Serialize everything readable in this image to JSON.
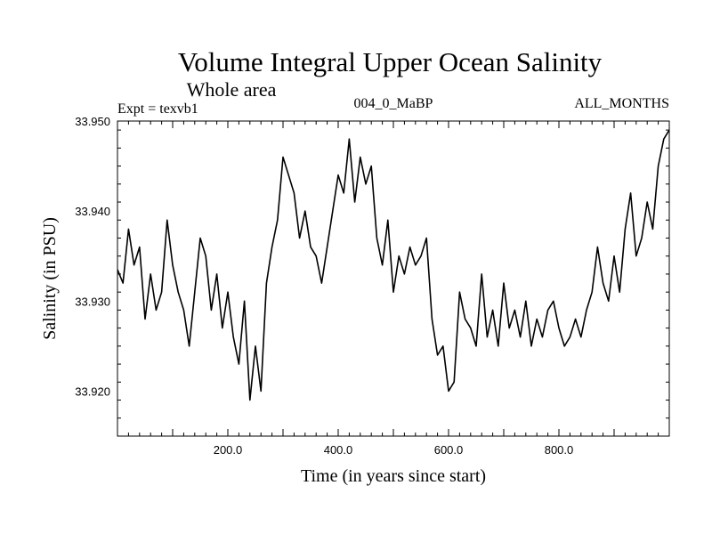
{
  "chart_data": {
    "type": "line",
    "title": "Volume Integral Upper Ocean Salinity",
    "subtitle": "Whole area",
    "labels": {
      "left": "Expt = texvb1",
      "center": "004_0_MaBP",
      "right": "ALL_MONTHS"
    },
    "xlabel": "Time (in years since start)",
    "ylabel": "Salinity (in PSU)",
    "xlim": [
      0,
      1000
    ],
    "ylim": [
      33.915,
      33.95
    ],
    "xticks": [
      200,
      400,
      600,
      800
    ],
    "xtick_labels": [
      "200.0",
      "400.0",
      "600.0",
      "800.0"
    ],
    "yticks": [
      33.92,
      33.93,
      33.94,
      33.95
    ],
    "ytick_labels": [
      "33.920",
      "33.930",
      "33.940",
      "33.950"
    ],
    "series": [
      {
        "name": "salinity",
        "color": "#000000",
        "x": [
          0,
          10,
          20,
          30,
          40,
          50,
          60,
          70,
          80,
          90,
          100,
          110,
          120,
          130,
          140,
          150,
          160,
          170,
          180,
          190,
          200,
          210,
          220,
          230,
          240,
          250,
          260,
          270,
          280,
          290,
          300,
          310,
          320,
          330,
          340,
          350,
          360,
          370,
          380,
          390,
          400,
          410,
          420,
          430,
          440,
          450,
          460,
          470,
          480,
          490,
          500,
          510,
          520,
          530,
          540,
          550,
          560,
          570,
          580,
          590,
          600,
          610,
          620,
          630,
          640,
          650,
          660,
          670,
          680,
          690,
          700,
          710,
          720,
          730,
          740,
          750,
          760,
          770,
          780,
          790,
          800,
          810,
          820,
          830,
          840,
          850,
          860,
          870,
          880,
          890,
          900,
          910,
          920,
          930,
          940,
          950,
          960,
          970,
          980,
          990,
          1000
        ],
        "values": [
          33.9335,
          33.932,
          33.938,
          33.934,
          33.936,
          33.928,
          33.933,
          33.929,
          33.931,
          33.939,
          33.934,
          33.931,
          33.929,
          33.925,
          33.931,
          33.937,
          33.935,
          33.929,
          33.933,
          33.927,
          33.931,
          33.926,
          33.923,
          33.93,
          33.919,
          33.925,
          33.92,
          33.932,
          33.936,
          33.939,
          33.946,
          33.944,
          33.942,
          33.937,
          33.94,
          33.936,
          33.935,
          33.932,
          33.936,
          33.94,
          33.944,
          33.942,
          33.948,
          33.941,
          33.946,
          33.943,
          33.945,
          33.937,
          33.934,
          33.939,
          33.931,
          33.935,
          33.933,
          33.936,
          33.934,
          33.935,
          33.937,
          33.928,
          33.924,
          33.925,
          33.92,
          33.921,
          33.931,
          33.928,
          33.927,
          33.925,
          33.933,
          33.926,
          33.929,
          33.925,
          33.932,
          33.927,
          33.929,
          33.926,
          33.93,
          33.925,
          33.928,
          33.926,
          33.929,
          33.93,
          33.927,
          33.925,
          33.926,
          33.928,
          33.926,
          33.929,
          33.931,
          33.936,
          33.932,
          33.93,
          33.935,
          33.931,
          33.938,
          33.942,
          33.935,
          33.937,
          33.941,
          33.938,
          33.945,
          33.948,
          33.949
        ]
      }
    ]
  }
}
